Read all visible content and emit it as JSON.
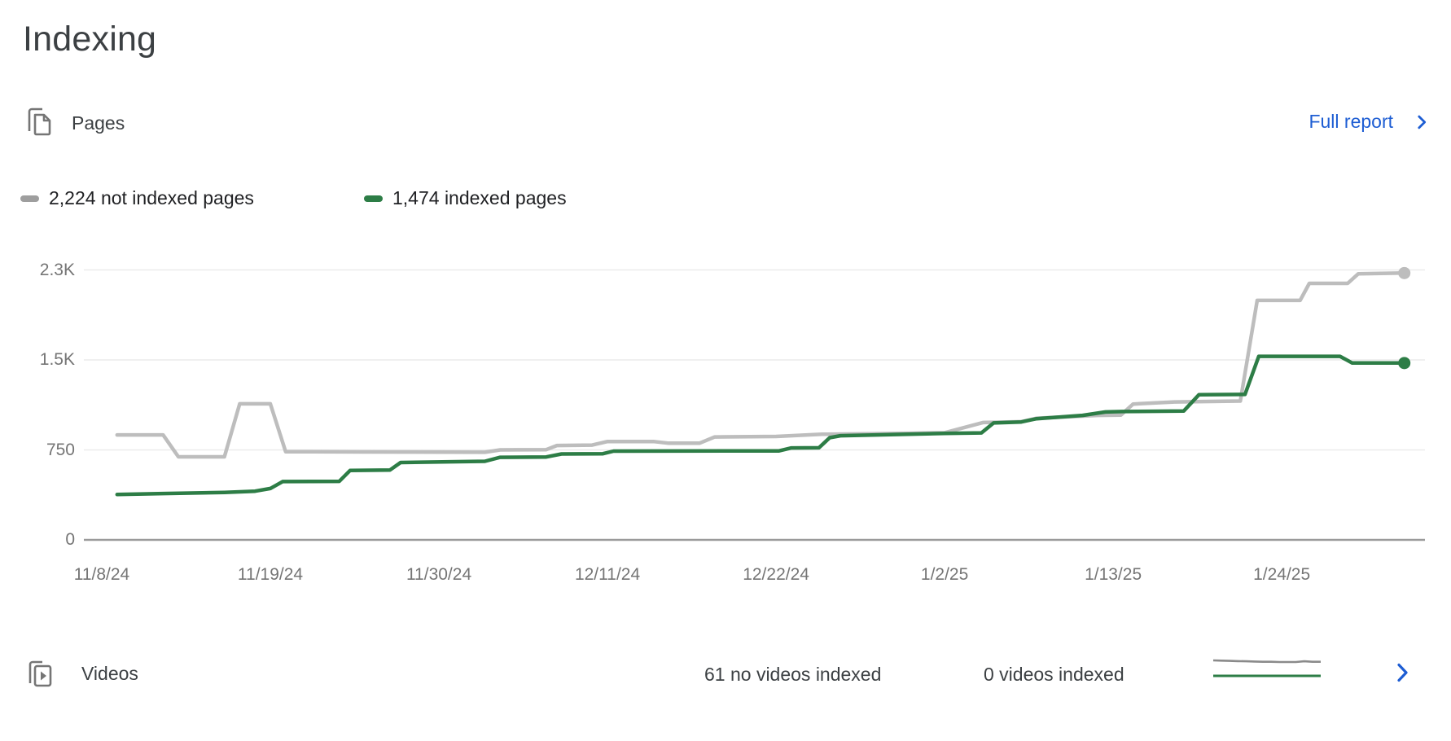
{
  "page": {
    "title": "Indexing"
  },
  "pages_card": {
    "title": "Pages",
    "full_report_label": "Full report",
    "link_color": "#1d5dd3",
    "legend": [
      {
        "label": "2,224 not indexed pages",
        "color": "#9e9e9e"
      },
      {
        "label": "1,474 indexed pages",
        "color": "#2d7d46"
      }
    ]
  },
  "chart_data": [
    {
      "name": "pages-indexing-trend",
      "type": "line",
      "grid": true,
      "legend_position": "top-left",
      "y_ticks": [
        {
          "value": 0,
          "label": "0"
        },
        {
          "value": 750,
          "label": "750"
        },
        {
          "value": 1500,
          "label": "1.5K"
        },
        {
          "value": 2250,
          "label": "2.3K"
        }
      ],
      "ylim": [
        0,
        2320
      ],
      "x_ticks": [
        {
          "day": 0,
          "label": "11/8/24"
        },
        {
          "day": 11,
          "label": "11/19/24"
        },
        {
          "day": 22,
          "label": "11/30/24"
        },
        {
          "day": 33,
          "label": "12/11/24"
        },
        {
          "day": 44,
          "label": "12/22/24"
        },
        {
          "day": 55,
          "label": "1/2/25"
        },
        {
          "day": 66,
          "label": "1/13/25"
        },
        {
          "day": 77,
          "label": "1/24/25"
        }
      ],
      "series": [
        {
          "name": "not indexed pages",
          "total": 2224,
          "color": "#bdbdbd",
          "points": [
            [
              1,
              875
            ],
            [
              4,
              875
            ],
            [
              5,
              692
            ],
            [
              8,
              692
            ],
            [
              9,
              1134
            ],
            [
              11,
              1134
            ],
            [
              12,
              735
            ],
            [
              17,
              733
            ],
            [
              25,
              730
            ],
            [
              26,
              750
            ],
            [
              29,
              752
            ],
            [
              29.7,
              787
            ],
            [
              32,
              790
            ],
            [
              33,
              820
            ],
            [
              36,
              820
            ],
            [
              37,
              806
            ],
            [
              39,
              806
            ],
            [
              40,
              858
            ],
            [
              44,
              862
            ],
            [
              47,
              880
            ],
            [
              51,
              886
            ],
            [
              55,
              893
            ],
            [
              57.5,
              978
            ],
            [
              60,
              985
            ],
            [
              61,
              1014
            ],
            [
              65,
              1038
            ],
            [
              66.5,
              1040
            ],
            [
              67.3,
              1132
            ],
            [
              70,
              1150
            ],
            [
              74.3,
              1157
            ],
            [
              75.4,
              1996
            ],
            [
              78.2,
              1996
            ],
            [
              78.8,
              2138
            ],
            [
              81.3,
              2138
            ],
            [
              82,
              2218
            ],
            [
              85,
              2224
            ]
          ]
        },
        {
          "name": "indexed pages",
          "total": 1474,
          "color": "#2d7d46",
          "points": [
            [
              1,
              378
            ],
            [
              4,
              386
            ],
            [
              8,
              396
            ],
            [
              10,
              406
            ],
            [
              11,
              428
            ],
            [
              11.8,
              486
            ],
            [
              15.5,
              488
            ],
            [
              16.2,
              578
            ],
            [
              18.8,
              582
            ],
            [
              19.5,
              645
            ],
            [
              25,
              655
            ],
            [
              26,
              688
            ],
            [
              29,
              691
            ],
            [
              30,
              716
            ],
            [
              32.7,
              718
            ],
            [
              33.4,
              740
            ],
            [
              44.2,
              742
            ],
            [
              45,
              766
            ],
            [
              46.8,
              768
            ],
            [
              47.5,
              852
            ],
            [
              48.2,
              868
            ],
            [
              55,
              888
            ],
            [
              57.4,
              892
            ],
            [
              58.2,
              975
            ],
            [
              60,
              983
            ],
            [
              61,
              1010
            ],
            [
              64,
              1038
            ],
            [
              65.5,
              1066
            ],
            [
              66.6,
              1070
            ],
            [
              70.6,
              1074
            ],
            [
              71.6,
              1210
            ],
            [
              74.6,
              1212
            ],
            [
              75.5,
              1530
            ],
            [
              80.8,
              1530
            ],
            [
              81.6,
              1474
            ],
            [
              85,
              1474
            ]
          ]
        }
      ]
    },
    {
      "name": "videos-indexing-sparkline",
      "type": "line",
      "grid": false,
      "series": [
        {
          "name": "no videos indexed",
          "total": 61,
          "color": "#8a8a8a",
          "values": [
            67,
            66,
            65,
            64,
            63,
            62,
            61,
            61,
            60,
            60,
            60,
            63,
            61,
            61
          ]
        },
        {
          "name": "videos indexed",
          "total": 0,
          "color": "#2d7d46",
          "values": [
            0,
            0,
            0,
            0,
            0,
            0,
            0,
            0,
            0,
            0,
            0,
            0,
            0,
            0
          ]
        }
      ]
    }
  ],
  "videos_card": {
    "title": "Videos",
    "not_indexed_text": "61 no videos indexed",
    "indexed_text": "0 videos indexed"
  },
  "colors": {
    "gridline": "#ececec",
    "axis_line": "#9a9a9a",
    "axis_text": "#757575",
    "icon_gray": "#757575"
  }
}
